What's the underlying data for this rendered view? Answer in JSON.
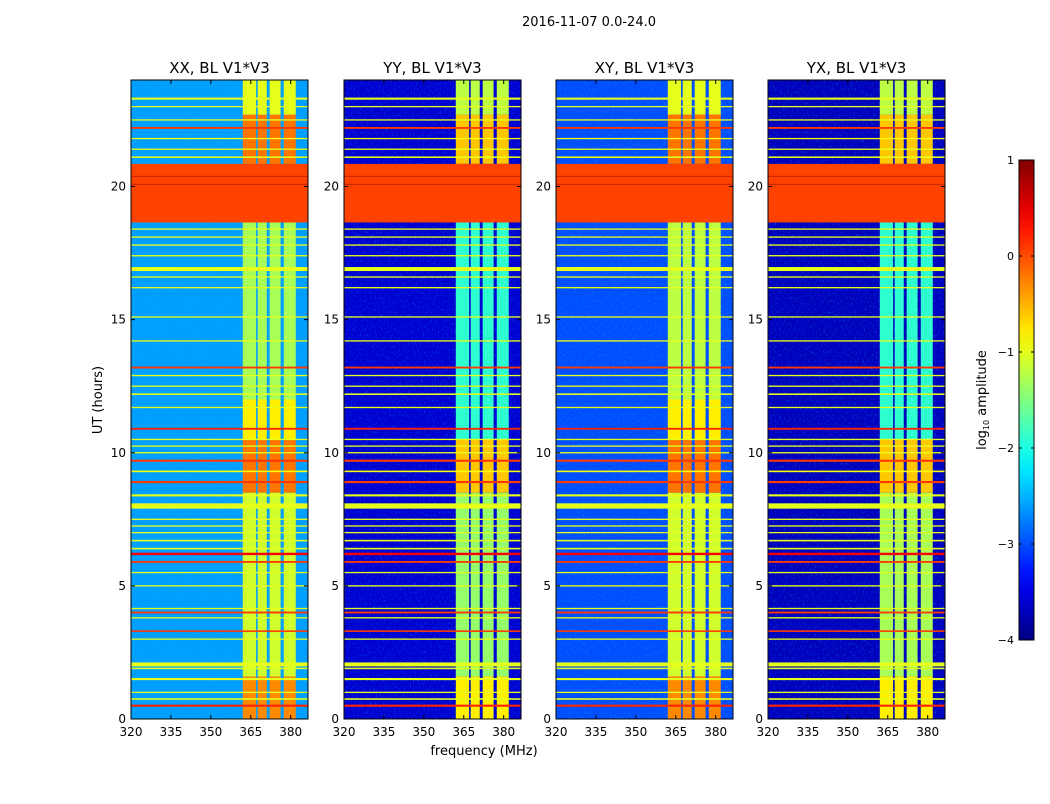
{
  "figure": {
    "suptitle": "2016-11-07 0.0-24.0",
    "ylabel": "UT (hours)",
    "xlabel": "frequency (MHz)"
  },
  "chart_data": {
    "type": "heatmap",
    "xlim": [
      320,
      386.5
    ],
    "ylim": [
      0,
      24
    ],
    "xticks": [
      "320",
      "335",
      "350",
      "365",
      "380"
    ],
    "xtick_values": [
      320,
      335,
      350,
      365,
      380
    ],
    "yticks": [
      "0",
      "5",
      "10",
      "15",
      "20"
    ],
    "ytick_values": [
      0,
      5,
      10,
      15,
      20
    ],
    "colorbar": {
      "label_main": "log",
      "label_sub": "10",
      "label_rest": " amplitude",
      "range": [
        -4,
        1
      ],
      "ticks": [
        "−4",
        "−3",
        "−2",
        "−1",
        "0",
        "1"
      ],
      "tick_values": [
        -4,
        -3,
        -2,
        -1,
        0,
        1
      ],
      "colormap": "jet"
    },
    "channels_mhz": [
      [
        362,
        367
      ],
      [
        367.6,
        371
      ],
      [
        372.1,
        376.2
      ],
      [
        377.4,
        381.9
      ]
    ],
    "rfi_block": {
      "t": [
        18.65,
        20.85
      ],
      "level": 0.05
    },
    "rfi_lines": [
      [
        0.5,
        0.2,
        0.08
      ],
      [
        0.75,
        -1,
        0.06
      ],
      [
        1.0,
        -1,
        0.05
      ],
      [
        1.5,
        -1,
        0.08
      ],
      [
        1.9,
        -1,
        0.06
      ],
      [
        2.05,
        -1,
        0.15
      ],
      [
        3.0,
        -1,
        0.05
      ],
      [
        3.3,
        0.1,
        0.06
      ],
      [
        3.8,
        -1,
        0.05
      ],
      [
        4.0,
        0.1,
        0.07
      ],
      [
        4.15,
        -1,
        0.05
      ],
      [
        5.0,
        -1,
        0.05
      ],
      [
        5.5,
        -1,
        0.05
      ],
      [
        5.9,
        0.1,
        0.07
      ],
      [
        6.2,
        0.4,
        0.09
      ],
      [
        6.4,
        -1,
        0.06
      ],
      [
        6.7,
        -1,
        0.06
      ],
      [
        7.0,
        -1,
        0.05
      ],
      [
        7.25,
        -1,
        0.05
      ],
      [
        7.5,
        -1,
        0.05
      ],
      [
        8.0,
        -1,
        0.2
      ],
      [
        8.4,
        -1,
        0.08
      ],
      [
        8.9,
        0.1,
        0.08
      ],
      [
        9.3,
        -0.9,
        0.06
      ],
      [
        9.7,
        0.1,
        0.08
      ],
      [
        10.0,
        -1,
        0.05
      ],
      [
        10.25,
        -1,
        0.05
      ],
      [
        10.5,
        -1,
        0.05
      ],
      [
        10.9,
        0.2,
        0.07
      ],
      [
        11.7,
        -1,
        0.05
      ],
      [
        12.2,
        -1,
        0.06
      ],
      [
        12.5,
        -1,
        0.05
      ],
      [
        12.9,
        -1,
        0.05
      ],
      [
        13.2,
        0.1,
        0.07
      ],
      [
        14.2,
        -1,
        0.05
      ],
      [
        15.1,
        -1,
        0.05
      ],
      [
        16.2,
        -1,
        0.05
      ],
      [
        16.6,
        -1,
        0.05
      ],
      [
        16.9,
        -1,
        0.15
      ],
      [
        17.4,
        -1,
        0.05
      ],
      [
        17.8,
        -1,
        0.05
      ],
      [
        18.1,
        -1,
        0.05
      ],
      [
        18.4,
        -1,
        0.05
      ],
      [
        21.1,
        -1,
        0.06
      ],
      [
        21.4,
        -1,
        0.05
      ],
      [
        21.8,
        -0.9,
        0.05
      ],
      [
        22.2,
        0.1,
        0.07
      ],
      [
        22.5,
        -1,
        0.05
      ],
      [
        23.0,
        -1,
        0.05
      ],
      [
        23.3,
        -1,
        0.08
      ]
    ],
    "panels": [
      {
        "title": "XX, BL V1*V3",
        "background_level": -2.6,
        "channel_levels": [
          [
            0,
            1.6,
            -0.3
          ],
          [
            1.6,
            8.5,
            -1.1
          ],
          [
            8.5,
            10.5,
            -0.2
          ],
          [
            10.5,
            12,
            -0.8
          ],
          [
            12,
            18.65,
            -1.3
          ],
          [
            20.85,
            22.7,
            -0.2
          ],
          [
            22.7,
            24,
            -1.0
          ]
        ]
      },
      {
        "title": "YY, BL V1*V3",
        "background_level": -3.6,
        "channel_levels": [
          [
            0,
            1.6,
            -0.8
          ],
          [
            1.6,
            8.5,
            -1.4
          ],
          [
            8.5,
            10.5,
            -0.6
          ],
          [
            10.5,
            18.65,
            -1.9
          ],
          [
            20.85,
            22.7,
            -0.6
          ],
          [
            22.7,
            24,
            -1.2
          ]
        ]
      },
      {
        "title": "XY, BL V1*V3",
        "background_level": -3.0,
        "channel_levels": [
          [
            0,
            1.6,
            -0.3
          ],
          [
            1.6,
            8.5,
            -1.1
          ],
          [
            8.5,
            10.5,
            -0.2
          ],
          [
            10.5,
            12,
            -0.8
          ],
          [
            12,
            18.65,
            -1.2
          ],
          [
            20.85,
            22.7,
            -0.2
          ],
          [
            22.7,
            24,
            -1.0
          ]
        ]
      },
      {
        "title": "YX, BL V1*V3",
        "background_level": -3.7,
        "channel_levels": [
          [
            0,
            1.6,
            -0.8
          ],
          [
            1.6,
            8.5,
            -1.3
          ],
          [
            8.5,
            10.5,
            -0.6
          ],
          [
            10.5,
            18.65,
            -1.9
          ],
          [
            20.85,
            22.7,
            -0.6
          ],
          [
            22.7,
            24,
            -1.2
          ]
        ]
      }
    ]
  }
}
